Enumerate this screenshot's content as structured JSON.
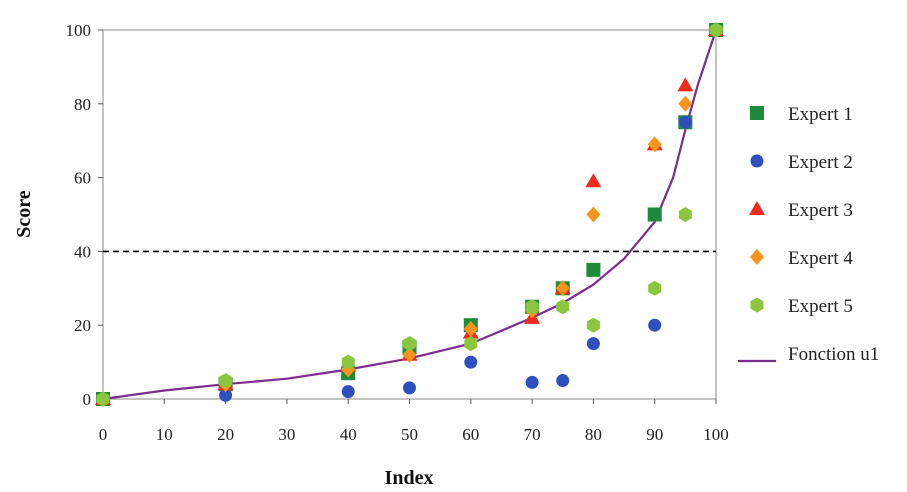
{
  "chart_data": {
    "type": "scatter",
    "xlabel": "Index",
    "ylabel": "Score",
    "xlim": [
      0,
      100
    ],
    "ylim": [
      0,
      100
    ],
    "xticks": [
      0,
      10,
      20,
      30,
      40,
      50,
      60,
      70,
      80,
      90,
      100
    ],
    "yticks": [
      0,
      20,
      40,
      60,
      80,
      100
    ],
    "grid": false,
    "legend_position": "right",
    "reference_line": {
      "y": 40,
      "style": "dashed",
      "color": "#000000"
    },
    "series": [
      {
        "name": "Expert 1",
        "marker": "square",
        "color": "#1e8a3c",
        "points": [
          [
            0,
            0
          ],
          [
            20,
            4
          ],
          [
            40,
            7
          ],
          [
            50,
            14
          ],
          [
            60,
            20
          ],
          [
            70,
            25
          ],
          [
            75,
            30
          ],
          [
            80,
            35
          ],
          [
            90,
            50
          ],
          [
            95,
            75
          ],
          [
            100,
            100
          ]
        ]
      },
      {
        "name": "Expert 2",
        "marker": "circle",
        "color": "#2f4fbf",
        "points": [
          [
            0,
            0
          ],
          [
            20,
            1
          ],
          [
            40,
            2
          ],
          [
            50,
            3
          ],
          [
            60,
            10
          ],
          [
            70,
            4.5
          ],
          [
            75,
            5
          ],
          [
            80,
            15
          ],
          [
            90,
            20
          ],
          [
            95,
            75
          ],
          [
            100,
            100
          ]
        ]
      },
      {
        "name": "Expert 3",
        "marker": "triangle",
        "color": "#ee2b1e",
        "points": [
          [
            0,
            0
          ],
          [
            20,
            4
          ],
          [
            40,
            9
          ],
          [
            50,
            12
          ],
          [
            60,
            18
          ],
          [
            70,
            22
          ],
          [
            75,
            30
          ],
          [
            80,
            59
          ],
          [
            90,
            69
          ],
          [
            95,
            85
          ],
          [
            100,
            100
          ]
        ]
      },
      {
        "name": "Expert 4",
        "marker": "diamond",
        "color": "#f7941d",
        "points": [
          [
            0,
            0
          ],
          [
            20,
            4
          ],
          [
            40,
            8
          ],
          [
            50,
            12
          ],
          [
            60,
            19
          ],
          [
            70,
            24
          ],
          [
            75,
            30
          ],
          [
            80,
            50
          ],
          [
            90,
            69
          ],
          [
            95,
            80
          ],
          [
            100,
            100
          ]
        ]
      },
      {
        "name": "Expert 5",
        "marker": "hexagon",
        "color": "#8cc63f",
        "points": [
          [
            0,
            0
          ],
          [
            20,
            5
          ],
          [
            40,
            10
          ],
          [
            50,
            15
          ],
          [
            60,
            15
          ],
          [
            70,
            25
          ],
          [
            75,
            25
          ],
          [
            80,
            20
          ],
          [
            90,
            30
          ],
          [
            95,
            50
          ],
          [
            100,
            100
          ]
        ]
      },
      {
        "name": "Fonction u1",
        "marker": "line",
        "color": "#7b2d8e",
        "points": [
          [
            0,
            0
          ],
          [
            10,
            2.3
          ],
          [
            20,
            4
          ],
          [
            30,
            5.5
          ],
          [
            40,
            8
          ],
          [
            50,
            11
          ],
          [
            60,
            15
          ],
          [
            70,
            22
          ],
          [
            75,
            26
          ],
          [
            80,
            31
          ],
          [
            85,
            38
          ],
          [
            90,
            48
          ],
          [
            93,
            60
          ],
          [
            95,
            73
          ],
          [
            97,
            85
          ],
          [
            100,
            100
          ]
        ]
      }
    ]
  }
}
